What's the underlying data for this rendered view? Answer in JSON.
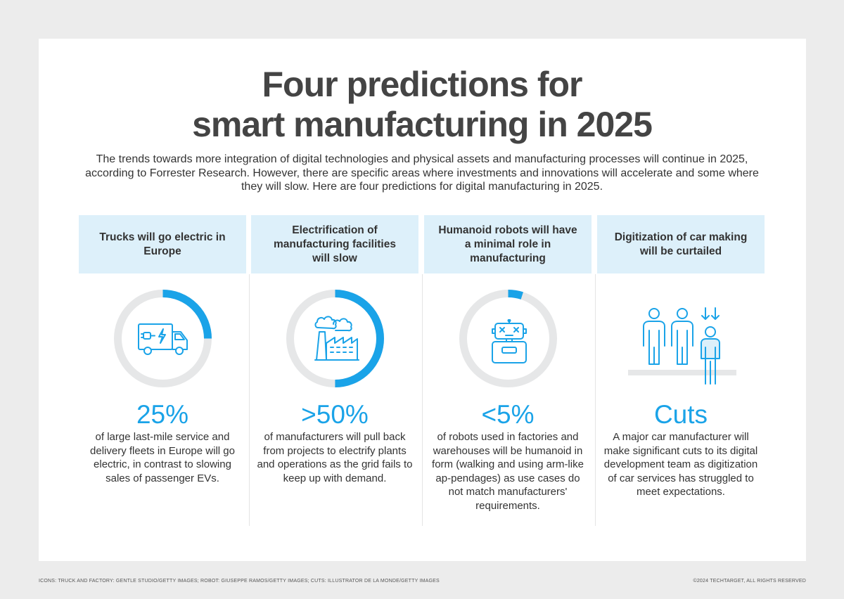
{
  "title": {
    "line1": "Four predictions for",
    "line2": "smart manufacturing in 2025"
  },
  "intro": "The trends towards more integration of digital technologies and physical assets and manufacturing processes will continue in 2025, according to Forrester Research. However, there are specific areas where investments and innovations will accelerate and some where they will slow. Here are four predictions for digital manufacturing in 2025.",
  "colors": {
    "accent": "#1aa3e8",
    "ring_track": "#e6e7e8",
    "header_bg": "#ddf0fa"
  },
  "predictions": [
    {
      "header": "Trucks will go electric in Europe",
      "stat": "25%",
      "share": 0.25,
      "icon": "electric-truck-icon",
      "description": "of large last-mile service and delivery fleets in Europe will go electric, in contrast to slowing sales of passenger EVs."
    },
    {
      "header": "Electrification of manufacturing facilities will slow",
      "stat": ">50%",
      "share": 0.5,
      "icon": "factory-icon",
      "description": "of manufacturers will pull back from projects to electrify plants and operations as the grid fails to keep up with demand."
    },
    {
      "header": "Humanoid robots will have a minimal role in manufacturing",
      "stat": "<5%",
      "share": 0.05,
      "icon": "robot-icon",
      "description": "of robots used in factories and warehouses will be humanoid in form (walking and using arm-like ap-pendages) as use cases do not match manufacturers' requirements."
    },
    {
      "header": "Digitization of car making will be curtailed",
      "stat": "Cuts",
      "icon": "workforce-cuts-icon",
      "description": "A major car manufacturer will make significant cuts to its digital development team as digitization of car services has struggled to meet expectations."
    }
  ],
  "footer": {
    "credits": "ICONS: TRUCK AND FACTORY: GENTLE STUDIO/GETTY IMAGES; ROBOT: GIUSEPPE RAMOS/GETTY IMAGES; CUTS: ILLUSTRATOR DE LA MONDE/GETTY IMAGES",
    "copyright": "©2024 TECHTARGET, ALL RIGHTS RESERVED"
  }
}
